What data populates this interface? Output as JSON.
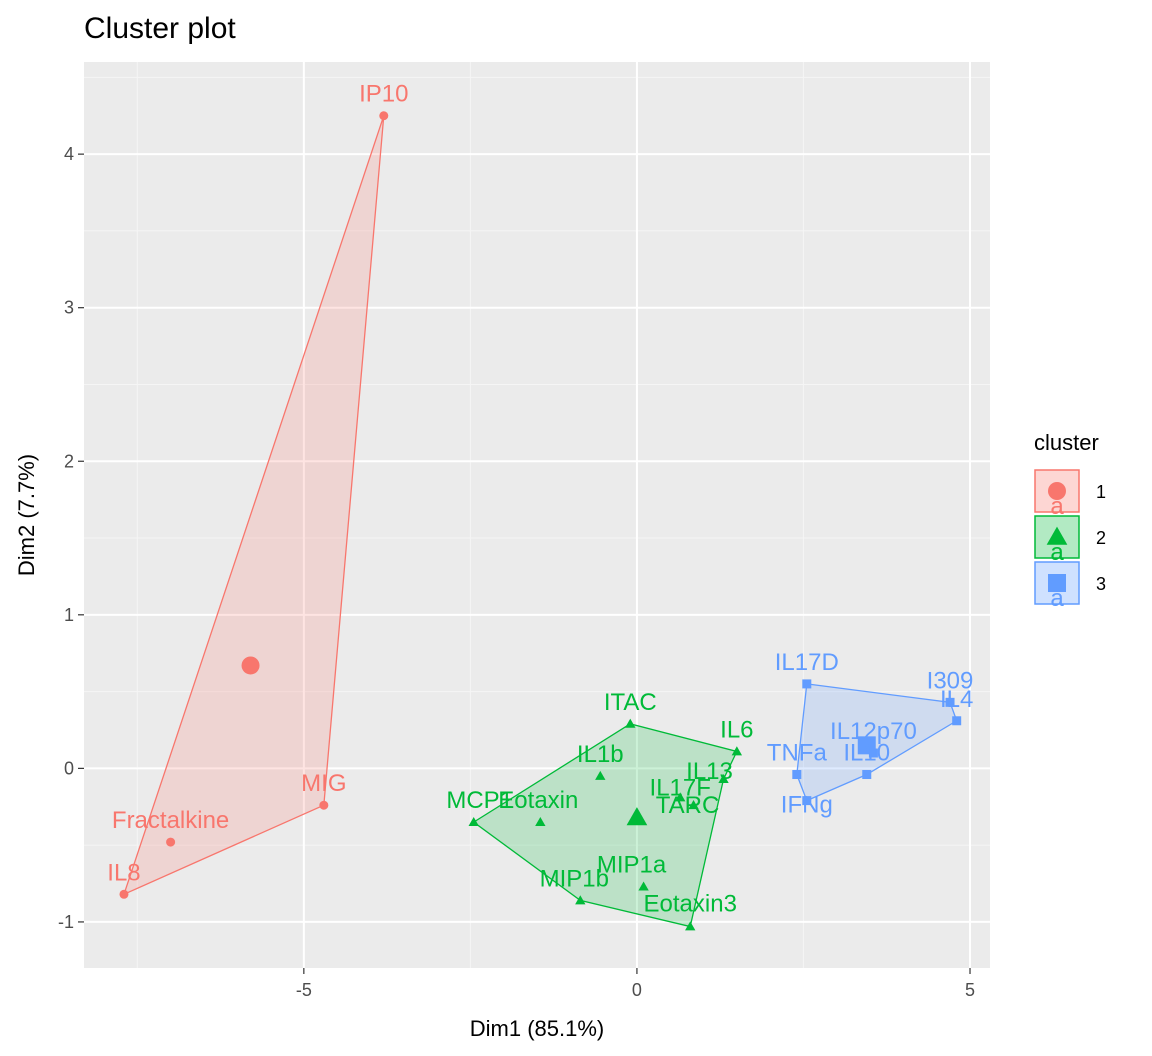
{
  "chart_data": {
    "type": "scatter",
    "title": "Cluster plot",
    "xlabel": "Dim1 (85.1%)",
    "ylabel": "Dim2 (7.7%)",
    "xlim": [
      -8.3,
      5.3
    ],
    "ylim": [
      -1.3,
      4.6
    ],
    "xticks": [
      -5,
      0,
      5
    ],
    "xtick_labels": [
      "-5",
      "0",
      "5"
    ],
    "yticks": [
      -1,
      0,
      1,
      2,
      3,
      4
    ],
    "ytick_labels": [
      "-1",
      "0",
      "1",
      "2",
      "3",
      "4"
    ],
    "grid": true,
    "legend": {
      "title": "cluster",
      "position": "right",
      "key_glyph_text": "a",
      "entries": [
        {
          "label": "1",
          "color": "#F8766D",
          "shape": "circle"
        },
        {
          "label": "2",
          "color": "#00BA38",
          "shape": "triangle"
        },
        {
          "label": "3",
          "color": "#619CFF",
          "shape": "square"
        }
      ]
    },
    "series": [
      {
        "cluster": "1",
        "color": "#F8766D",
        "shape": "circle",
        "centroid": [
          -5.8,
          0.67
        ],
        "hull": [
          "IP10",
          "MIG",
          "IL8"
        ],
        "points": [
          {
            "label": "IP10",
            "x": -3.8,
            "y": 4.25
          },
          {
            "label": "MIG",
            "x": -4.7,
            "y": -0.24
          },
          {
            "label": "Fractalkine",
            "x": -7.0,
            "y": -0.48
          },
          {
            "label": "IL8",
            "x": -7.7,
            "y": -0.82
          }
        ]
      },
      {
        "cluster": "2",
        "color": "#00BA38",
        "shape": "triangle",
        "centroid": [
          0.0,
          -0.32
        ],
        "hull": [
          "ITAC",
          "IL6",
          "IL13",
          "Eotaxin3",
          "MIP1b",
          "MCP1"
        ],
        "points": [
          {
            "label": "ITAC",
            "x": -0.1,
            "y": 0.29
          },
          {
            "label": "IL1b",
            "x": -0.55,
            "y": -0.05
          },
          {
            "label": "IL6",
            "x": 1.5,
            "y": 0.11
          },
          {
            "label": "IL13",
            "x": 1.3,
            "y": -0.07
          },
          {
            "label": "IL17F",
            "x": 0.65,
            "y": -0.19
          },
          {
            "label": "TARC",
            "x": 0.85,
            "y": -0.24
          },
          {
            "label": "MCP1",
            "x": -2.45,
            "y": -0.35
          },
          {
            "label": "Eotaxin",
            "x": -1.45,
            "y": -0.35
          },
          {
            "label": "MIP1a",
            "x": 0.1,
            "y": -0.77
          },
          {
            "label": "MIP1b",
            "x": -0.85,
            "y": -0.86
          },
          {
            "label": "Eotaxin3",
            "x": 0.8,
            "y": -1.03
          }
        ]
      },
      {
        "cluster": "3",
        "color": "#619CFF",
        "shape": "square",
        "centroid": [
          3.45,
          0.15
        ],
        "hull": [
          "IL17D",
          "I309",
          "IL4",
          "IL10",
          "IFNg",
          "TNFa"
        ],
        "points": [
          {
            "label": "IL17D",
            "x": 2.55,
            "y": 0.55
          },
          {
            "label": "I309",
            "x": 4.7,
            "y": 0.43
          },
          {
            "label": "IL4",
            "x": 4.8,
            "y": 0.31
          },
          {
            "label": "IL12p70",
            "x": 3.55,
            "y": 0.1
          },
          {
            "label": "IL10",
            "x": 3.45,
            "y": -0.04
          },
          {
            "label": "TNFa",
            "x": 2.4,
            "y": -0.04
          },
          {
            "label": "IFNg",
            "x": 2.55,
            "y": -0.21
          }
        ]
      }
    ]
  }
}
